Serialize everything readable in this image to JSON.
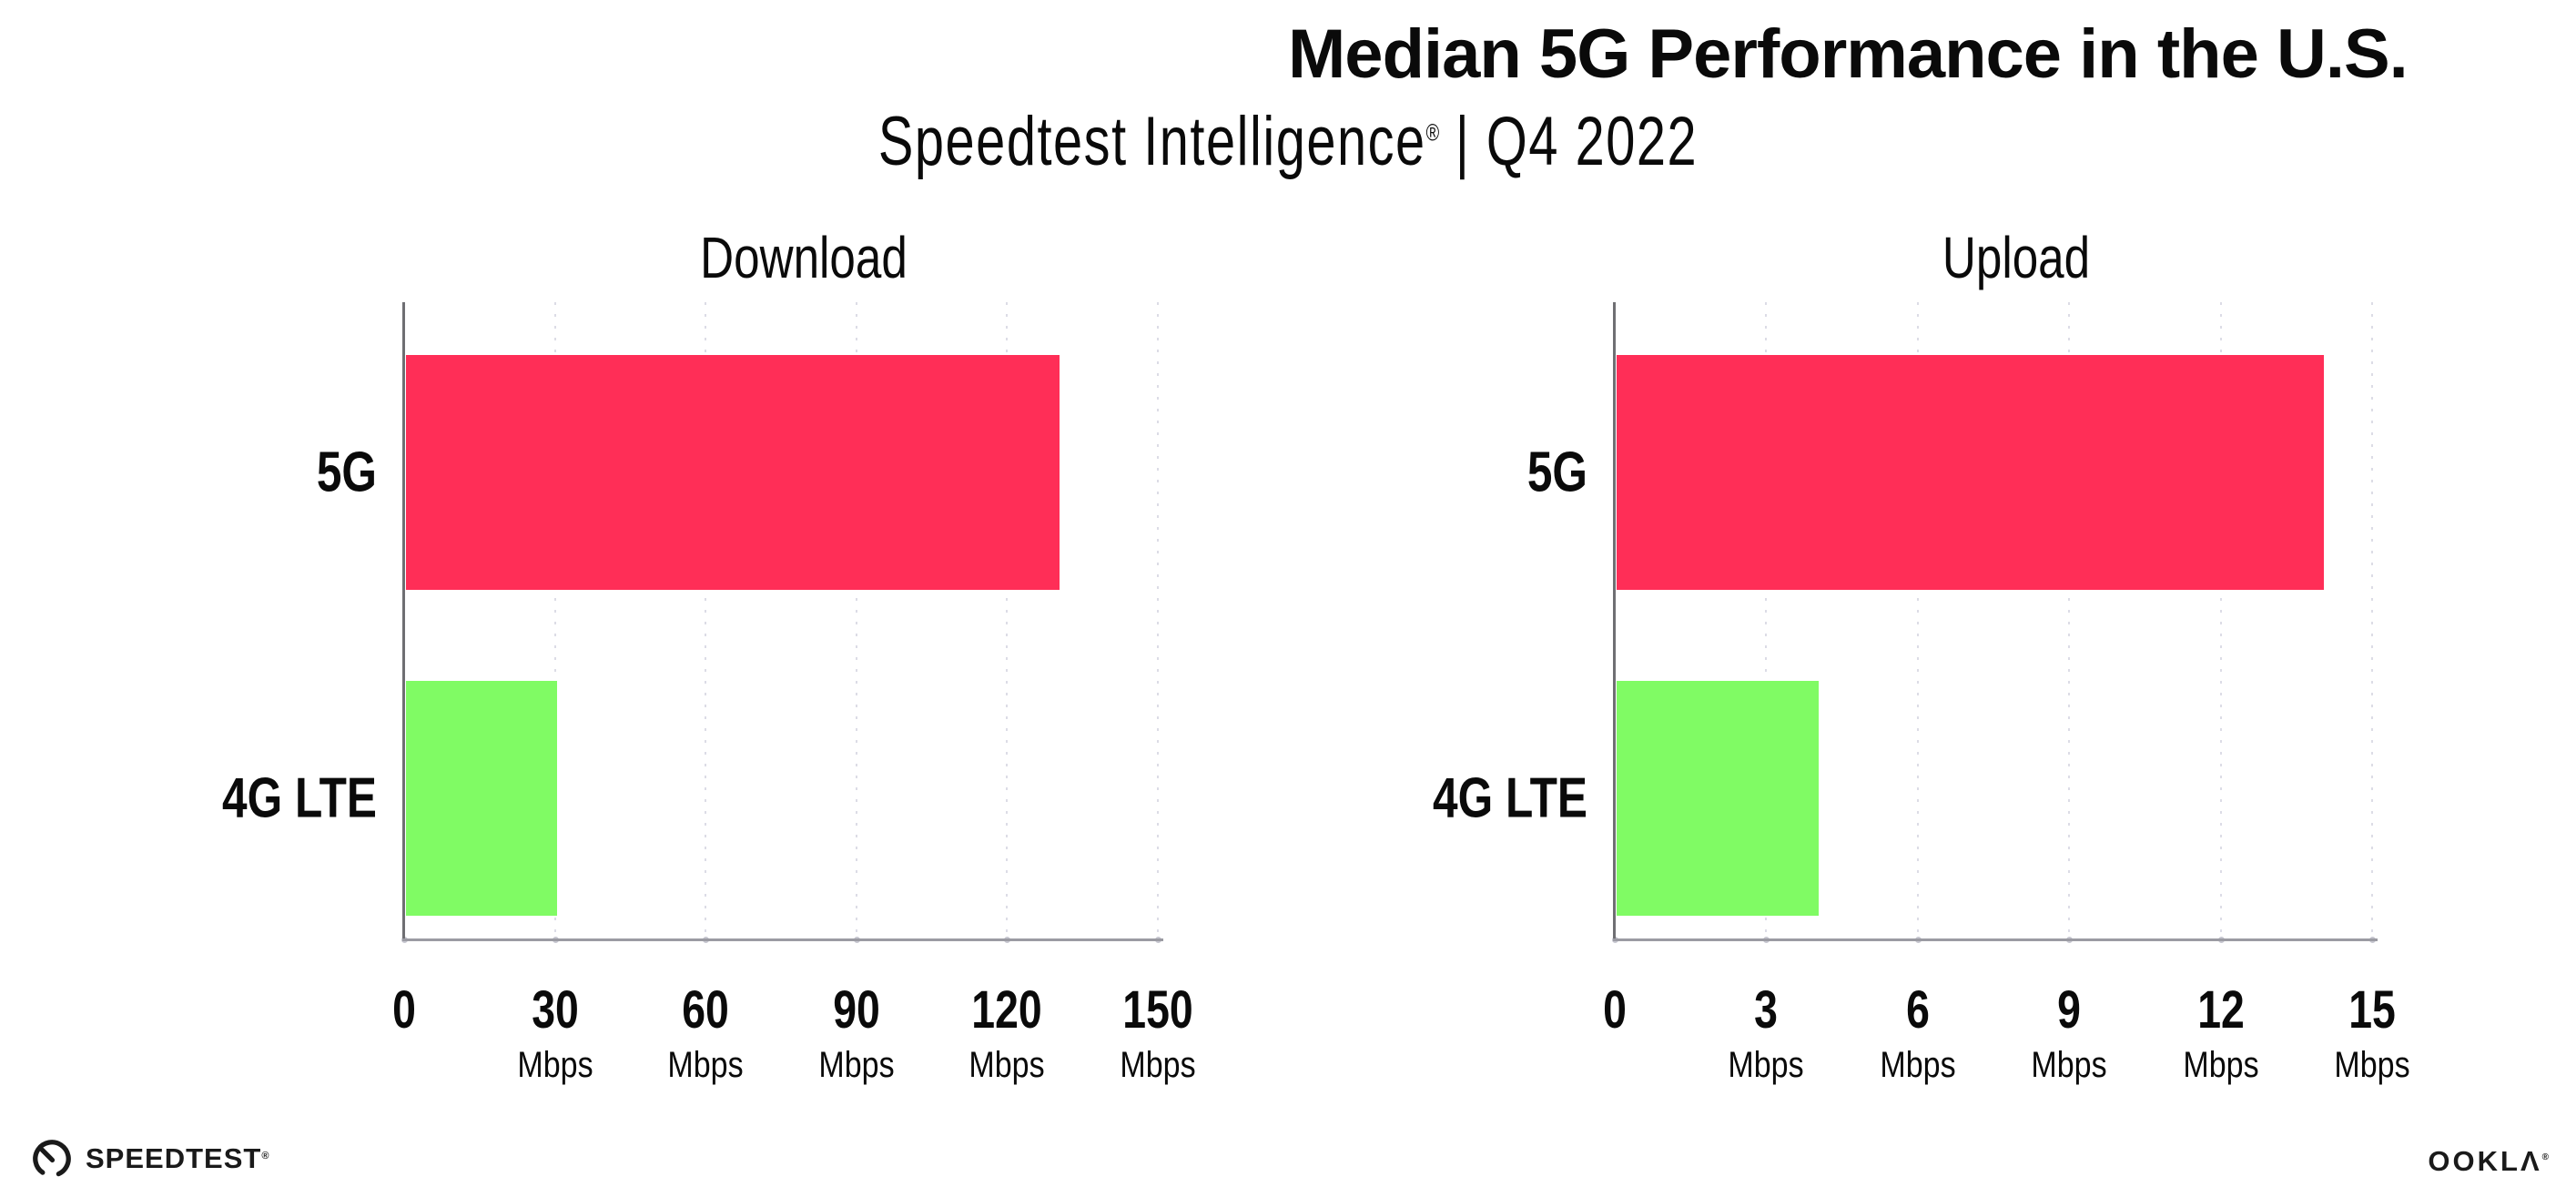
{
  "header": {
    "title": "Median 5G Performance in the U.S.",
    "subtitle_brand": "Speedtest Intelligence",
    "subtitle_reg": "®",
    "subtitle_rest": " | Q4 2022"
  },
  "colors": {
    "bar_5g": "#FF2E57",
    "bar_4g_lte": "#80FB64",
    "gridline": "#DCDCE6",
    "x_axis": "#9B9BA3",
    "y_axis": "#6F6F73",
    "text": "#0A0A0A",
    "background": "#FFFFFF"
  },
  "chart_data": [
    {
      "type": "bar",
      "orientation": "horizontal",
      "title": "Download",
      "categories": [
        "5G",
        "4G LTE"
      ],
      "values": [
        130,
        30
      ],
      "unit": "Mbps",
      "xlim": [
        0,
        150
      ],
      "xticks": [
        0,
        30,
        60,
        90,
        120,
        150
      ],
      "bar_colors": [
        "#FF2E57",
        "#80FB64"
      ],
      "grid": "vertical-dotted",
      "legend": false
    },
    {
      "type": "bar",
      "orientation": "horizontal",
      "title": "Upload",
      "categories": [
        "5G",
        "4G LTE"
      ],
      "values": [
        14,
        4
      ],
      "unit": "Mbps",
      "xlim": [
        0,
        15
      ],
      "xticks": [
        0,
        3,
        6,
        9,
        12,
        15
      ],
      "bar_colors": [
        "#FF2E57",
        "#80FB64"
      ],
      "grid": "vertical-dotted",
      "legend": false
    }
  ],
  "footer": {
    "speedtest_label": "SPEEDTEST",
    "speedtest_mark": "®",
    "ookla_label": "OOKLΛ",
    "ookla_mark": "®"
  }
}
